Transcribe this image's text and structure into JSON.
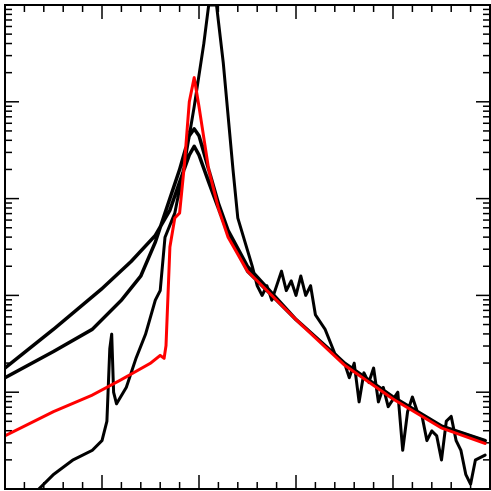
{
  "chart_data": {
    "type": "line",
    "title": "",
    "xlabel": "",
    "ylabel": "",
    "grid": false,
    "legend": "none",
    "xlim": [
      0,
      5
    ],
    "ylim": [
      0,
      5
    ],
    "y_log_decades": true,
    "series": [
      {
        "color": "#ff0000",
        "stroke": 3,
        "points": [
          [
            0.0,
            0.55
          ],
          [
            0.5,
            0.8
          ],
          [
            0.9,
            0.97
          ],
          [
            1.2,
            1.13
          ],
          [
            1.5,
            1.3
          ],
          [
            1.6,
            1.38
          ],
          [
            1.64,
            1.35
          ],
          [
            1.66,
            1.48
          ],
          [
            1.7,
            2.5
          ],
          [
            1.75,
            2.8
          ],
          [
            1.8,
            2.85
          ],
          [
            1.85,
            3.35
          ],
          [
            1.9,
            4.0
          ],
          [
            1.95,
            4.25
          ],
          [
            2.0,
            3.95
          ],
          [
            2.1,
            3.3
          ],
          [
            2.2,
            2.9
          ],
          [
            2.3,
            2.6
          ],
          [
            2.5,
            2.25
          ],
          [
            3.0,
            1.75
          ],
          [
            3.5,
            1.28
          ],
          [
            4.0,
            0.93
          ],
          [
            4.5,
            0.63
          ],
          [
            4.95,
            0.47
          ]
        ]
      },
      {
        "color": "#000000",
        "stroke": 3.5,
        "points": [
          [
            0.0,
            1.25
          ],
          [
            0.5,
            1.65
          ],
          [
            1.0,
            2.07
          ],
          [
            1.3,
            2.35
          ],
          [
            1.55,
            2.62
          ],
          [
            1.7,
            2.88
          ],
          [
            1.8,
            3.17
          ],
          [
            1.9,
            3.45
          ],
          [
            1.95,
            3.54
          ],
          [
            2.0,
            3.45
          ],
          [
            2.1,
            3.17
          ],
          [
            2.2,
            2.9
          ],
          [
            2.3,
            2.62
          ],
          [
            2.5,
            2.25
          ],
          [
            3.0,
            1.75
          ],
          [
            3.5,
            1.3
          ],
          [
            4.0,
            0.95
          ],
          [
            4.5,
            0.65
          ],
          [
            4.95,
            0.5
          ]
        ]
      },
      {
        "color": "#000000",
        "stroke": 3.5,
        "points": [
          [
            0.0,
            1.15
          ],
          [
            0.5,
            1.42
          ],
          [
            0.9,
            1.65
          ],
          [
            1.2,
            1.95
          ],
          [
            1.4,
            2.2
          ],
          [
            1.55,
            2.55
          ],
          [
            1.65,
            2.85
          ],
          [
            1.8,
            3.3
          ],
          [
            1.9,
            3.65
          ],
          [
            1.95,
            3.72
          ],
          [
            2.0,
            3.65
          ],
          [
            2.1,
            3.3
          ],
          [
            2.2,
            2.95
          ],
          [
            2.3,
            2.67
          ],
          [
            2.5,
            2.3
          ],
          [
            3.0,
            1.75
          ],
          [
            3.5,
            1.3
          ],
          [
            4.0,
            0.95
          ],
          [
            4.5,
            0.65
          ],
          [
            4.95,
            0.5
          ]
        ]
      },
      {
        "color": "#000000",
        "stroke": 3,
        "points": [
          [
            0.35,
            0.0
          ],
          [
            0.5,
            0.15
          ],
          [
            0.7,
            0.3
          ],
          [
            0.9,
            0.4
          ],
          [
            1.0,
            0.5
          ],
          [
            1.05,
            0.7
          ],
          [
            1.08,
            1.45
          ],
          [
            1.1,
            1.6
          ],
          [
            1.12,
            1.0
          ],
          [
            1.15,
            0.88
          ],
          [
            1.25,
            1.05
          ],
          [
            1.35,
            1.35
          ],
          [
            1.45,
            1.6
          ],
          [
            1.55,
            1.95
          ],
          [
            1.6,
            2.05
          ],
          [
            1.65,
            2.6
          ],
          [
            1.75,
            2.85
          ],
          [
            1.85,
            3.35
          ],
          [
            1.95,
            3.95
          ],
          [
            2.05,
            4.6
          ],
          [
            2.1,
            5.0
          ],
          [
            2.18,
            5.0
          ],
          [
            2.25,
            4.4
          ],
          [
            2.35,
            3.3
          ],
          [
            2.4,
            2.8
          ],
          [
            2.55,
            2.3
          ],
          [
            2.6,
            2.1
          ],
          [
            2.65,
            2.0
          ],
          [
            2.7,
            2.1
          ],
          [
            2.75,
            1.95
          ],
          [
            2.85,
            2.25
          ],
          [
            2.9,
            2.05
          ],
          [
            2.95,
            2.15
          ],
          [
            3.0,
            2.0
          ],
          [
            3.05,
            2.2
          ],
          [
            3.1,
            2.0
          ],
          [
            3.15,
            2.1
          ],
          [
            3.2,
            1.8
          ],
          [
            3.3,
            1.65
          ],
          [
            3.4,
            1.4
          ],
          [
            3.5,
            1.3
          ],
          [
            3.55,
            1.15
          ],
          [
            3.6,
            1.3
          ],
          [
            3.65,
            0.9
          ],
          [
            3.7,
            1.2
          ],
          [
            3.75,
            1.1
          ],
          [
            3.8,
            1.25
          ],
          [
            3.85,
            0.9
          ],
          [
            3.9,
            1.05
          ],
          [
            3.95,
            0.85
          ],
          [
            4.05,
            1.0
          ],
          [
            4.1,
            0.4
          ],
          [
            4.15,
            0.8
          ],
          [
            4.2,
            0.95
          ],
          [
            4.25,
            0.8
          ],
          [
            4.3,
            0.75
          ],
          [
            4.35,
            0.5
          ],
          [
            4.4,
            0.6
          ],
          [
            4.45,
            0.55
          ],
          [
            4.5,
            0.3
          ],
          [
            4.55,
            0.7
          ],
          [
            4.6,
            0.75
          ],
          [
            4.65,
            0.5
          ],
          [
            4.7,
            0.4
          ],
          [
            4.75,
            0.15
          ],
          [
            4.8,
            0.05
          ],
          [
            4.85,
            0.3
          ],
          [
            4.95,
            0.35
          ]
        ]
      }
    ]
  }
}
